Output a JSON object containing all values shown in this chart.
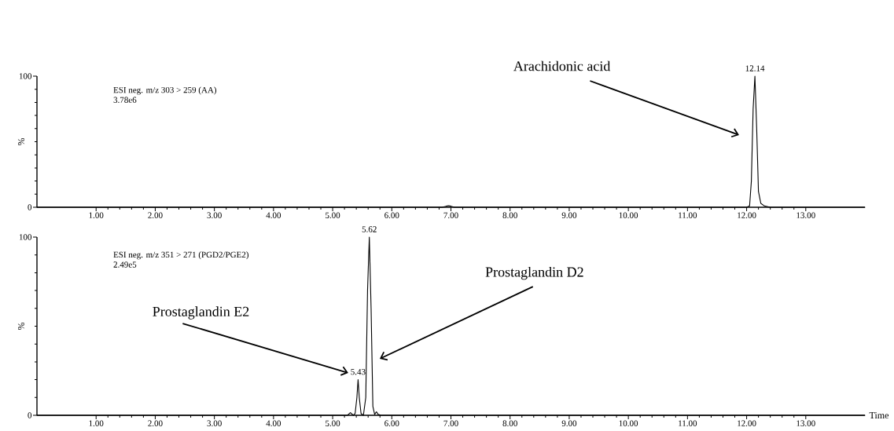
{
  "chart_data": [
    {
      "type": "line",
      "color": "#000000",
      "ylabel": "%",
      "x": [
        0,
        6.85,
        6.92,
        6.96,
        7.0,
        7.06,
        12.0,
        12.05,
        12.08,
        12.11,
        12.14,
        12.17,
        12.2,
        12.24,
        12.3,
        12.4,
        14
      ],
      "values": [
        0,
        0,
        0.8,
        1.2,
        0.8,
        0,
        0,
        1,
        20,
        75,
        100,
        60,
        12,
        3,
        1,
        0,
        0
      ],
      "xlim": [
        0,
        14
      ],
      "ylim": [
        0,
        100
      ],
      "yticks": [
        0,
        100
      ],
      "xticks": [
        {
          "value": 1,
          "label": "1.00"
        },
        {
          "value": 2,
          "label": "2.00"
        },
        {
          "value": 3,
          "label": "3.00"
        },
        {
          "value": 4,
          "label": "4.00"
        },
        {
          "value": 5,
          "label": "5.00"
        },
        {
          "value": 6,
          "label": "6.00"
        },
        {
          "value": 7,
          "label": "7.00"
        },
        {
          "value": 8,
          "label": "8.00"
        },
        {
          "value": 9,
          "label": "9.00"
        },
        {
          "value": 10,
          "label": "10.00"
        },
        {
          "value": 11,
          "label": "11.00"
        },
        {
          "value": 12,
          "label": "12.00"
        },
        {
          "value": 13,
          "label": "13.00"
        }
      ],
      "annotations": [
        "ESI neg.  m/z 303 > 259 (AA)",
        "3.78e6",
        {
          "text": "12.14",
          "x": 12.14,
          "y": 100
        },
        "Arachidonic acid"
      ]
    },
    {
      "type": "line",
      "color": "#000000",
      "ylabel": "%",
      "xlabel": "Time",
      "x": [
        0,
        5.25,
        5.3,
        5.35,
        5.38,
        5.41,
        5.43,
        5.45,
        5.48,
        5.52,
        5.56,
        5.59,
        5.62,
        5.65,
        5.68,
        5.71,
        5.74,
        5.77,
        5.82,
        14
      ],
      "values": [
        0,
        0,
        1.5,
        0,
        1,
        10,
        20,
        10,
        1,
        0,
        10,
        70,
        100,
        60,
        5,
        0.5,
        2,
        0.5,
        0,
        0
      ],
      "xlim": [
        0,
        14
      ],
      "ylim": [
        0,
        100
      ],
      "yticks": [
        0,
        100
      ],
      "xticks": [
        {
          "value": 1,
          "label": "1.00"
        },
        {
          "value": 2,
          "label": "2.00"
        },
        {
          "value": 3,
          "label": "3.00"
        },
        {
          "value": 4,
          "label": "4.00"
        },
        {
          "value": 5,
          "label": "5.00"
        },
        {
          "value": 6,
          "label": "6.00"
        },
        {
          "value": 7,
          "label": "7.00"
        },
        {
          "value": 8,
          "label": "8.00"
        },
        {
          "value": 9,
          "label": "9.00"
        },
        {
          "value": 10,
          "label": "10.00"
        },
        {
          "value": 11,
          "label": "11.00"
        },
        {
          "value": 12,
          "label": "12.00"
        },
        {
          "value": 13,
          "label": "13.00"
        }
      ],
      "annotations": [
        "ESI neg.  m/z 351 > 271 (PGD2/PGE2)",
        "2.49e5",
        {
          "text": "5.62",
          "x": 5.62,
          "y": 100
        },
        {
          "text": "5.43",
          "x": 5.43,
          "y": 20
        },
        "Prostaglandin E2",
        "Prostaglandin D2"
      ]
    }
  ]
}
